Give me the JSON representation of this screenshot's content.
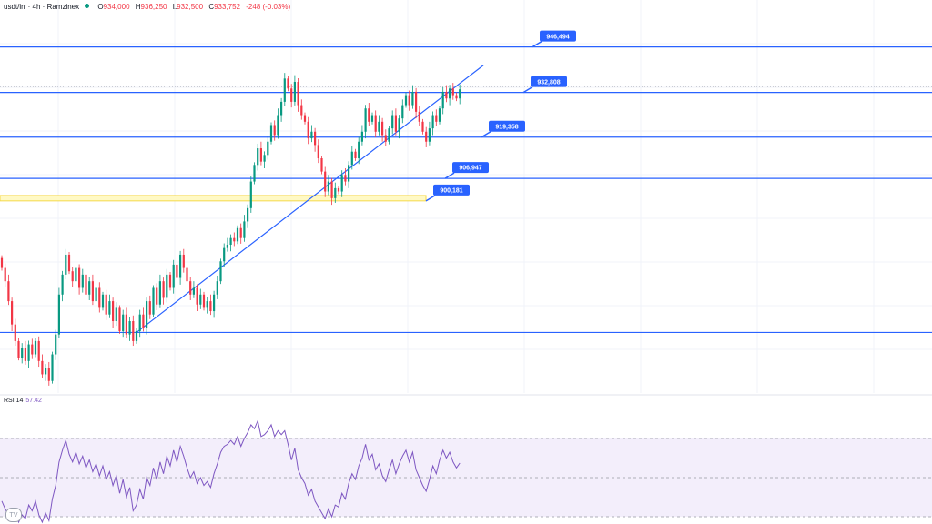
{
  "header": {
    "symbol": "usdt/irr · 4h · Ramzinex",
    "o_label": "O",
    "o_value": "934,000",
    "h_label": "H",
    "h_value": "936,250",
    "l_label": "L",
    "l_value": "932,500",
    "c_label": "C",
    "c_value": "933,752",
    "change": "-248 (-0.03%)"
  },
  "colors": {
    "up": "#089981",
    "down": "#f23645",
    "level_line": "#2962ff",
    "trendline": "#2962ff",
    "label_bg": "#2962ff",
    "zone_fill": "#fff9c4",
    "zone_border": "#f5d94a",
    "rsi_line": "#7e57c2",
    "rsi_band": "#f3eefb",
    "grid": "#f0f3fa"
  },
  "chart_data": {
    "type": "candlestick",
    "title": "usdt/irr · 4h · Ramzinex",
    "ylim": [
      882000,
      952000
    ],
    "grid": true,
    "levels": [
      {
        "label": "946,494",
        "value": 946494
      },
      {
        "label": "932,808",
        "value": 932808
      },
      {
        "label": "919,358",
        "value": 919358
      },
      {
        "label": "906,947",
        "value": 906947
      }
    ],
    "bottom_level": 860600,
    "last_price": 933752,
    "zone": {
      "label": "900,181",
      "from": 900181,
      "to": 901800
    },
    "trendline": {
      "from": {
        "bar": 40,
        "price": 860600
      },
      "to": {
        "bar": 143,
        "price": 941000
      }
    },
    "closes": [
      880000,
      876000,
      870000,
      863000,
      858000,
      853000,
      856000,
      852000,
      857000,
      854000,
      858000,
      852000,
      848000,
      850000,
      846000,
      854000,
      860000,
      872000,
      878000,
      884000,
      879000,
      876000,
      880000,
      874000,
      878000,
      872000,
      876000,
      870000,
      874000,
      868000,
      872000,
      866000,
      870000,
      864000,
      868000,
      861000,
      866000,
      860000,
      864000,
      858000,
      861000,
      866000,
      862000,
      870000,
      866000,
      874000,
      869000,
      876000,
      871000,
      878000,
      874000,
      881000,
      877000,
      884000,
      880000,
      876000,
      872000,
      874000,
      869000,
      872000,
      868000,
      870000,
      867000,
      872000,
      876000,
      882000,
      886000,
      887000,
      889000,
      888000,
      892000,
      889000,
      894000,
      898000,
      906000,
      911000,
      916000,
      912000,
      914000,
      918000,
      923000,
      920000,
      926000,
      930000,
      937000,
      934000,
      930000,
      936000,
      929000,
      926000,
      924000,
      919000,
      921000,
      917000,
      913000,
      909000,
      903000,
      906000,
      901000,
      904000,
      903000,
      908000,
      906000,
      911000,
      915000,
      913000,
      918000,
      921000,
      928000,
      924000,
      926000,
      921000,
      924000,
      920000,
      918000,
      922000,
      926000,
      921000,
      925000,
      929000,
      932000,
      929000,
      933000,
      927000,
      924000,
      921000,
      918000,
      922000,
      926000,
      924000,
      928000,
      933000,
      931000,
      934000,
      932000,
      931000,
      933752
    ],
    "rsi": {
      "label": "RSI 14",
      "value_label": "57.42",
      "upper": 70,
      "lower": 30,
      "values": [
        38,
        34,
        31,
        28,
        32,
        27,
        31,
        29,
        36,
        33,
        38,
        31,
        26,
        32,
        28,
        39,
        46,
        58,
        64,
        69,
        62,
        58,
        63,
        57,
        61,
        55,
        59,
        53,
        57,
        51,
        56,
        49,
        53,
        46,
        51,
        42,
        49,
        40,
        45,
        33,
        36,
        44,
        39,
        50,
        46,
        55,
        49,
        58,
        52,
        61,
        56,
        64,
        58,
        66,
        61,
        55,
        50,
        53,
        47,
        50,
        46,
        48,
        45,
        52,
        57,
        63,
        66,
        67,
        69,
        67,
        71,
        66,
        70,
        73,
        77,
        75,
        79,
        71,
        72,
        74,
        77,
        71,
        74,
        72,
        74,
        67,
        59,
        65,
        54,
        50,
        47,
        41,
        44,
        38,
        35,
        32,
        29,
        34,
        30,
        36,
        35,
        42,
        39,
        47,
        52,
        49,
        56,
        60,
        67,
        59,
        62,
        54,
        57,
        51,
        48,
        54,
        59,
        52,
        57,
        61,
        64,
        58,
        63,
        54,
        50,
        46,
        43,
        49,
        56,
        52,
        59,
        64,
        60,
        63,
        58,
        55,
        57.42
      ]
    }
  }
}
